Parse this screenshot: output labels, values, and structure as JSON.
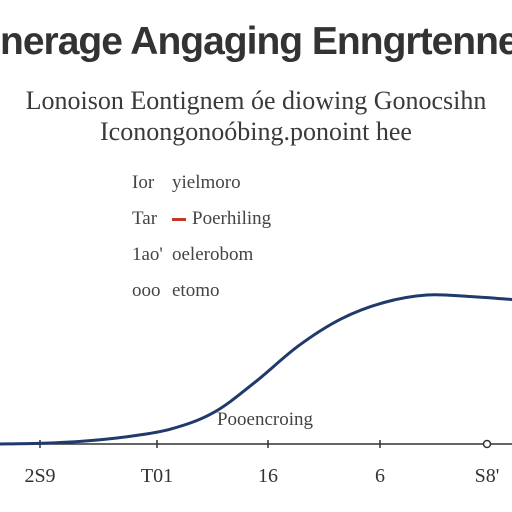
{
  "chart_data": {
    "type": "line",
    "title": "nerage Angaging Enngrtenne",
    "subtitle_lines": [
      "Lonoison Eontignem óe diowing Gonocsihn",
      "Iconongonoóbing.ponoint hee"
    ],
    "legend": [
      {
        "key": "Ior",
        "label": "yielmoro",
        "marker": false
      },
      {
        "key": "Tar",
        "label": "Poerhiling",
        "marker": true
      },
      {
        "key": "1ao'",
        "label": "oelerobom",
        "marker": false
      },
      {
        "key": "ooo",
        "label": "etomo",
        "marker": false
      }
    ],
    "xlabel": "Pooencroing",
    "ylabel": "",
    "x_ticks": [
      "2S9",
      "T01",
      "16",
      "6",
      "S8'"
    ],
    "series": [
      {
        "x": [
          0,
          0.5,
          1,
          1.5,
          2,
          2.5,
          3,
          3.5,
          4,
          4.5,
          5,
          5.5,
          6
        ],
        "values": [
          0,
          0.5,
          2,
          5,
          10,
          21,
          42,
          66,
          84,
          95,
          100,
          99,
          97
        ],
        "color": "#1f3a6b"
      }
    ],
    "xlim": [
      0,
      6
    ],
    "ylim": [
      0,
      100
    ],
    "grid": false,
    "colors": {
      "line": "#1f3a6b",
      "legend_marker": "#c0392b",
      "axis": "#333333"
    }
  }
}
